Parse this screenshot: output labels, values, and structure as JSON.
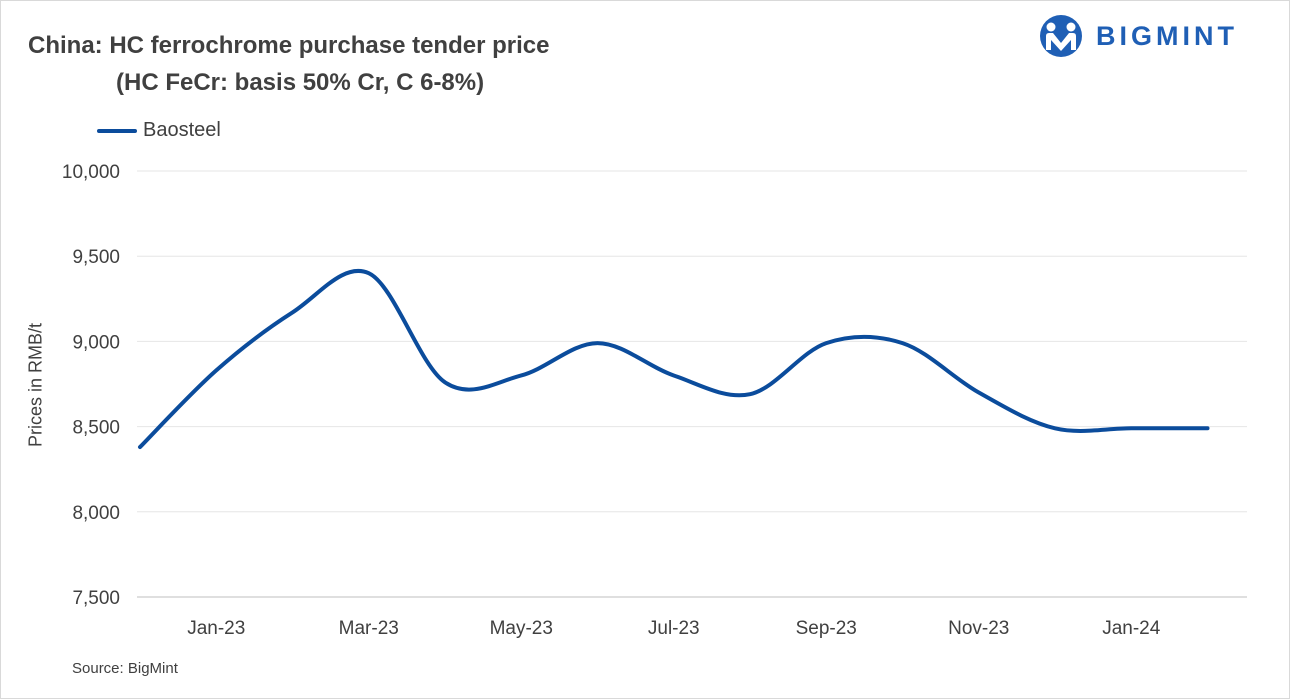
{
  "chart_data": {
    "type": "line",
    "title": "China: HC ferrochrome purchase tender price",
    "subtitle": "(HC FeCr: basis 50% Cr, C 6-8%)",
    "ylabel": "Prices in RMB/t",
    "ylim": [
      7500,
      10000
    ],
    "yticks": [
      7500,
      8000,
      8500,
      9000,
      9500,
      10000
    ],
    "ytick_labels": [
      "7,500",
      "8,000",
      "8,500",
      "9,000",
      "9,500",
      "10,000"
    ],
    "xtick_labels": [
      "Jan-23",
      "Mar-23",
      "May-23",
      "Jul-23",
      "Sep-23",
      "Nov-23",
      "Jan-24"
    ],
    "x": [
      "Dec-22",
      "Jan-23",
      "Feb-23",
      "Mar-23",
      "Apr-23",
      "May-23",
      "Jun-23",
      "Jul-23",
      "Aug-23",
      "Sep-23",
      "Oct-23",
      "Nov-23",
      "Dec-23",
      "Jan-24",
      "Feb-24"
    ],
    "series": [
      {
        "name": "Baosteel",
        "color": "#0b4c9c",
        "values": [
          8380,
          8830,
          9170,
          9400,
          8760,
          8800,
          8990,
          8800,
          8690,
          8990,
          8990,
          8700,
          8490,
          8490,
          8490
        ]
      }
    ],
    "grid": true,
    "legend_position": "top-left"
  },
  "logo": {
    "text": "BIGMINT",
    "icon": "bigmint-people-logo-icon",
    "color": "#1f5fb5"
  },
  "source": "Source: BigMint"
}
